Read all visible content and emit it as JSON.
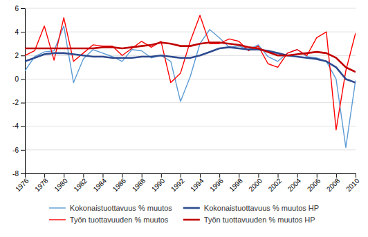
{
  "chart_data": {
    "type": "line",
    "x": [
      1976,
      1977,
      1978,
      1979,
      1980,
      1981,
      1982,
      1983,
      1984,
      1985,
      1986,
      1987,
      1988,
      1989,
      1990,
      1991,
      1992,
      1993,
      1994,
      1995,
      1996,
      1997,
      1998,
      1999,
      2000,
      2001,
      2002,
      2003,
      2004,
      2005,
      2006,
      2007,
      2008,
      2009,
      2010
    ],
    "xlim": [
      1976,
      2010
    ],
    "xticks": [
      1976,
      1978,
      1980,
      1982,
      1984,
      1986,
      1988,
      1990,
      1992,
      1994,
      1996,
      1998,
      2000,
      2002,
      2004,
      2006,
      2008,
      2010
    ],
    "ylim": [
      -8,
      6
    ],
    "yticks": [
      -8,
      -6,
      -4,
      -2,
      0,
      2,
      4,
      6
    ],
    "grid": true,
    "series": [
      {
        "name": "Kokonaistuottavuus % muutos",
        "color": "#5B9BD5",
        "values": [
          0.7,
          1.9,
          2.3,
          2.4,
          4.5,
          -0.3,
          1.7,
          2.5,
          2.2,
          1.9,
          1.5,
          2.5,
          2.4,
          1.8,
          2.0,
          1.5,
          -1.9,
          0.2,
          3.0,
          4.2,
          3.5,
          2.7,
          2.8,
          2.5,
          2.9,
          1.9,
          1.5,
          2.2,
          2.5,
          1.9,
          1.8,
          1.5,
          0.0,
          -5.8,
          -0.1
        ]
      },
      {
        "name": "Työn tuottavuuden % muutos",
        "color": "#FF0000",
        "values": [
          2.0,
          2.4,
          4.5,
          1.6,
          5.2,
          1.5,
          2.2,
          2.9,
          2.8,
          2.8,
          2.0,
          2.6,
          3.2,
          2.7,
          3.2,
          -0.3,
          0.5,
          3.2,
          5.4,
          3.0,
          3.0,
          3.4,
          3.2,
          2.4,
          2.8,
          1.3,
          1.0,
          2.2,
          2.5,
          2.0,
          3.5,
          4.0,
          -4.3,
          0.7,
          3.9
        ]
      },
      {
        "name": "Kokonaistuottavuus % muutos HP",
        "color": "#2E4B8F",
        "values": [
          1.5,
          1.8,
          2.1,
          2.2,
          2.2,
          2.1,
          2.0,
          1.9,
          1.9,
          1.8,
          1.8,
          1.8,
          1.9,
          1.9,
          2.0,
          1.9,
          1.8,
          1.8,
          2.0,
          2.3,
          2.6,
          2.7,
          2.6,
          2.5,
          2.5,
          2.4,
          2.2,
          2.0,
          1.9,
          1.8,
          1.7,
          1.5,
          1.0,
          0.0,
          -0.3
        ]
      },
      {
        "name": "Työn tuottavuuden % muutos HP",
        "color": "#C00000",
        "values": [
          2.6,
          2.6,
          2.6,
          2.6,
          2.6,
          2.6,
          2.6,
          2.6,
          2.7,
          2.7,
          2.6,
          2.7,
          2.8,
          2.9,
          3.1,
          3.0,
          2.8,
          2.8,
          3.0,
          3.1,
          3.1,
          3.0,
          2.9,
          2.7,
          2.6,
          2.3,
          2.0,
          2.0,
          2.1,
          2.2,
          2.3,
          2.2,
          1.8,
          1.0,
          0.6
        ]
      }
    ]
  }
}
